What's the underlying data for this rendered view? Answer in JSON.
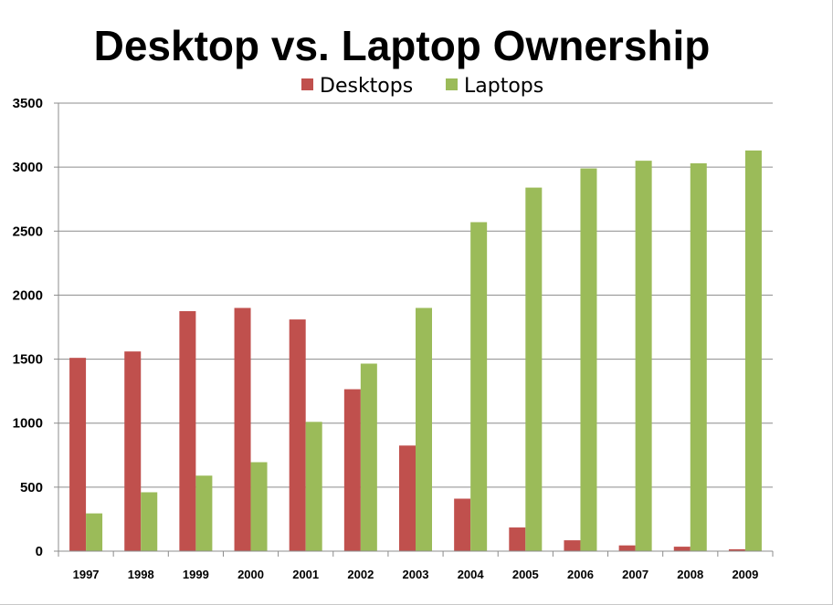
{
  "chart_data": {
    "type": "bar",
    "title": "Desktop vs. Laptop Ownership",
    "xlabel": "",
    "ylabel": "",
    "categories": [
      "1997",
      "1998",
      "1999",
      "2000",
      "2001",
      "2002",
      "2003",
      "2004",
      "2005",
      "2006",
      "2007",
      "2008",
      "2009"
    ],
    "series": [
      {
        "name": "Desktops",
        "color": "#c0504d",
        "values": [
          1510,
          1560,
          1875,
          1900,
          1810,
          1265,
          825,
          410,
          185,
          85,
          45,
          35,
          15
        ]
      },
      {
        "name": "Laptops",
        "color": "#9bbb59",
        "values": [
          295,
          460,
          590,
          695,
          1010,
          1465,
          1900,
          2570,
          2840,
          2990,
          3050,
          3030,
          3130
        ]
      }
    ],
    "ylim": [
      0,
      3500
    ],
    "yticks": [
      "0",
      "500",
      "1000",
      "1500",
      "2000",
      "2500",
      "3000",
      "3500"
    ],
    "grid": true,
    "legend_position": "top-center"
  }
}
